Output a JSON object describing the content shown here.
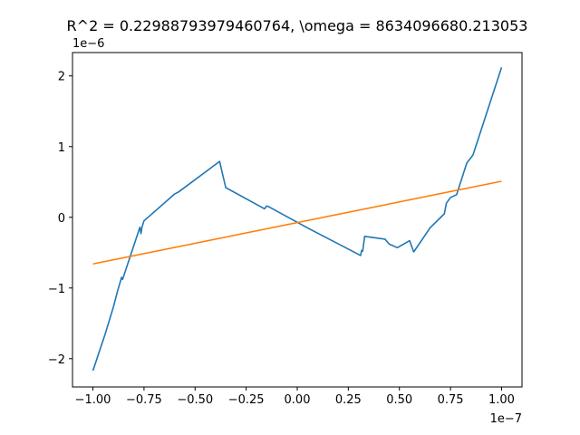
{
  "chart_data": {
    "type": "line",
    "title": "R^2 = 0.22988793979460764, \\omega = 8634096680.213053",
    "xlabel": "",
    "ylabel": "",
    "x_offset_label": "1e−7",
    "y_offset_label": "1e−6",
    "xlim": [
      -1.1e-07,
      1.1e-07
    ],
    "ylim": [
      -2.4e-06,
      2.33e-06
    ],
    "x_ticks": [
      -1e-07,
      -7.5e-08,
      -5e-08,
      -2.5e-08,
      0,
      2.5e-08,
      5e-08,
      7.5e-08,
      1e-07
    ],
    "x_tick_labels": [
      "−1.00",
      "−0.75",
      "−0.50",
      "−0.25",
      "0.00",
      "0.25",
      "0.50",
      "0.75",
      "1.00"
    ],
    "y_ticks": [
      -2e-06,
      -1e-06,
      0,
      1e-06,
      2e-06
    ],
    "y_tick_labels": [
      "−2",
      "−1",
      "0",
      "1",
      "2"
    ],
    "grid": false,
    "legend": "none",
    "series": [
      {
        "color": "#1f77b4",
        "x": [
          -1e-07,
          -9.4e-08,
          -9e-08,
          -8.8e-08,
          -8.6e-08,
          -8.55e-08,
          -7.7e-08,
          -7.65e-08,
          -7.6e-08,
          -7.5e-08,
          -6e-08,
          -5.8e-08,
          -3.8e-08,
          -3.5e-08,
          -1.6e-08,
          -1.5e-08,
          -1.4e-08,
          5e-09,
          3.1e-08,
          3.15e-08,
          3.2e-08,
          3.3e-08,
          4.3e-08,
          4.5e-08,
          4.9e-08,
          5.5e-08,
          5.7e-08,
          6.5e-08,
          7.2e-08,
          7.3e-08,
          7.5e-08,
          7.8e-08,
          8e-08,
          8.3e-08,
          8.6e-08,
          1e-07
        ],
        "y": [
          -2.17e-06,
          -1.65e-06,
          -1.27e-06,
          -1.05e-06,
          -8.5e-07,
          -8.8e-07,
          -1.4e-07,
          -2.3e-07,
          -1.4e-07,
          -5e-08,
          3.3e-07,
          3.6e-07,
          7.9e-07,
          4.2e-07,
          1.2e-07,
          1.6e-07,
          1.5e-07,
          -1.5e-07,
          -5.4e-07,
          -4.7e-07,
          -4.8e-07,
          -2.7e-07,
          -3.1e-07,
          -3.8e-07,
          -4.3e-07,
          -3.3e-07,
          -4.9e-07,
          -1.5e-07,
          5e-08,
          2e-07,
          2.8e-07,
          3.2e-07,
          5e-07,
          7.7e-07,
          8.8e-07,
          2.12e-06
        ]
      },
      {
        "color": "#ff7f0e",
        "x": [
          -1e-07,
          1e-07
        ],
        "y": [
          -6.6e-07,
          5.1e-07
        ]
      }
    ]
  }
}
